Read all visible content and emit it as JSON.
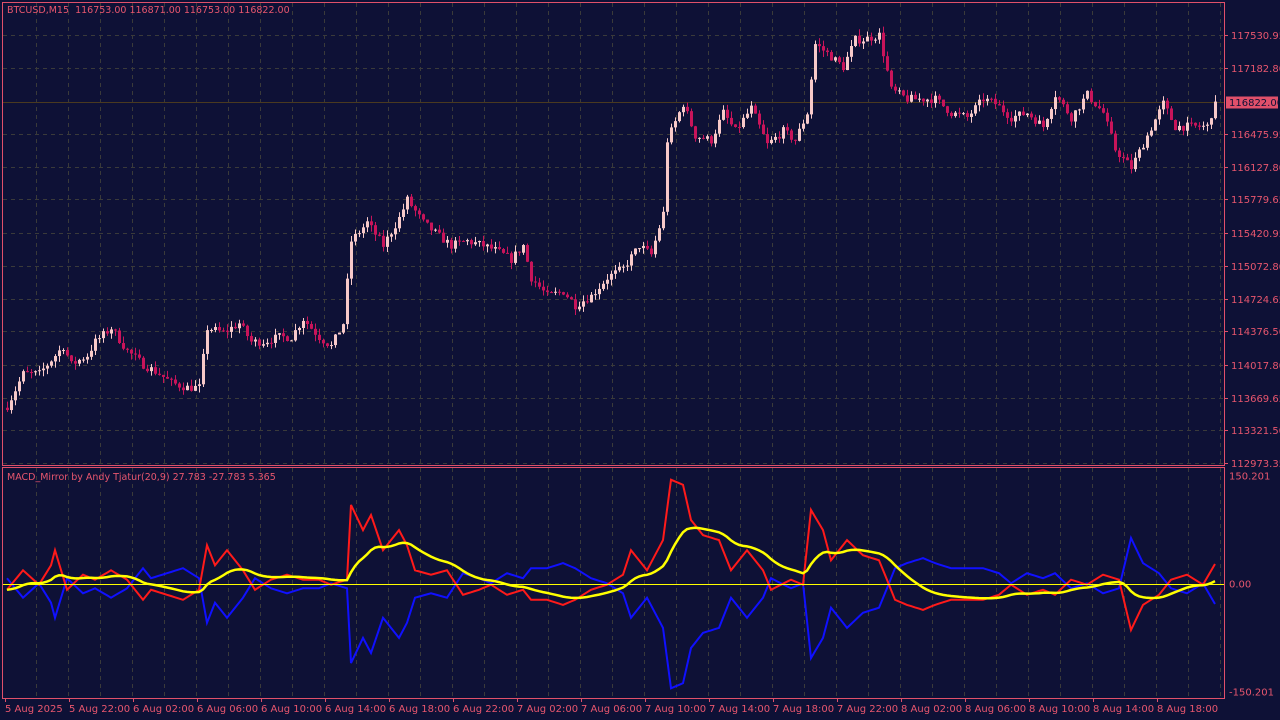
{
  "header": {
    "symbol": "BTCUSD,M15",
    "ohlc": "116753.00 116871.00 116753.00 116822.00"
  },
  "indicator": {
    "title": "MACD_Mirror by Andy Tjatur(20,9) 27.783 -27.783 5.365",
    "signal_period": 9
  },
  "colors": {
    "background": "#0e1136",
    "frame": "#e0506a",
    "text": "#e8566e",
    "bull_candle": "#f7c9c9",
    "bear_candle": "#c8145a",
    "macd_line": "#ff1a1a",
    "mirror_line": "#1010ff",
    "signal_line": "#ffff00",
    "grid": "#3a3a3a",
    "current_price_line": "#4a3a20"
  },
  "chart_data": [
    {
      "type": "candlestick",
      "title": "BTCUSD,M15",
      "bar_count": 303,
      "price_ticks": [
        "117530.95",
        "117182.80",
        "116475.95",
        "116127.80",
        "115779.65",
        "115420.95",
        "115072.80",
        "114724.65",
        "114376.50",
        "114017.80",
        "113669.65",
        "113321.50",
        "112973.35"
      ],
      "ylim": [
        112973.35,
        117530.95
      ],
      "current_price": "116822.00",
      "close_keypoints": [
        [
          0,
          113582
        ],
        [
          4,
          113923
        ],
        [
          8,
          113923
        ],
        [
          11,
          114070
        ],
        [
          14,
          114216
        ],
        [
          16,
          114021
        ],
        [
          20,
          114119
        ],
        [
          22,
          114265
        ],
        [
          26,
          114411
        ],
        [
          30,
          114167
        ],
        [
          34,
          114021
        ],
        [
          38,
          113923
        ],
        [
          41,
          113826
        ],
        [
          45,
          113777
        ],
        [
          48,
          113777
        ],
        [
          50,
          114411
        ],
        [
          54,
          114362
        ],
        [
          58,
          114460
        ],
        [
          61,
          114265
        ],
        [
          64,
          114265
        ],
        [
          68,
          114314
        ],
        [
          71,
          114314
        ],
        [
          74,
          114509
        ],
        [
          78,
          114314
        ],
        [
          81,
          114216
        ],
        [
          84,
          114460
        ],
        [
          86,
          115337
        ],
        [
          90,
          115532
        ],
        [
          94,
          115289
        ],
        [
          98,
          115581
        ],
        [
          100,
          115776
        ],
        [
          104,
          115532
        ],
        [
          108,
          115386
        ],
        [
          111,
          115289
        ],
        [
          115,
          115337
        ],
        [
          119,
          115289
        ],
        [
          122,
          115240
        ],
        [
          126,
          115142
        ],
        [
          129,
          115289
        ],
        [
          131,
          114947
        ],
        [
          135,
          114752
        ],
        [
          139,
          114801
        ],
        [
          142,
          114655
        ],
        [
          146,
          114752
        ],
        [
          150,
          114947
        ],
        [
          154,
          115045
        ],
        [
          158,
          115289
        ],
        [
          161,
          115191
        ],
        [
          164,
          115630
        ],
        [
          165,
          116410
        ],
        [
          169,
          116800
        ],
        [
          172,
          116459
        ],
        [
          176,
          116410
        ],
        [
          179,
          116702
        ],
        [
          182,
          116507
        ],
        [
          186,
          116751
        ],
        [
          190,
          116361
        ],
        [
          194,
          116507
        ],
        [
          197,
          116410
        ],
        [
          200,
          116702
        ],
        [
          202,
          117434
        ],
        [
          205,
          117336
        ],
        [
          209,
          117190
        ],
        [
          212,
          117482
        ],
        [
          214,
          117482
        ],
        [
          218,
          117531
        ],
        [
          221,
          116946
        ],
        [
          225,
          116849
        ],
        [
          229,
          116849
        ],
        [
          232,
          116849
        ],
        [
          236,
          116702
        ],
        [
          240,
          116654
        ],
        [
          244,
          116849
        ],
        [
          247,
          116800
        ],
        [
          251,
          116654
        ],
        [
          255,
          116702
        ],
        [
          259,
          116556
        ],
        [
          262,
          116897
        ],
        [
          266,
          116654
        ],
        [
          270,
          116897
        ],
        [
          274,
          116702
        ],
        [
          277,
          116312
        ],
        [
          281,
          116117
        ],
        [
          285,
          116459
        ],
        [
          289,
          116800
        ],
        [
          292,
          116556
        ],
        [
          296,
          116556
        ],
        [
          300,
          116556
        ],
        [
          302,
          116822
        ]
      ],
      "time_labels": [
        "5 Aug 2025",
        "5 Aug 22:00",
        "6 Aug 02:00",
        "6 Aug 06:00",
        "6 Aug 10:00",
        "6 Aug 14:00",
        "6 Aug 18:00",
        "6 Aug 22:00",
        "7 Aug 02:00",
        "7 Aug 06:00",
        "7 Aug 10:00",
        "7 Aug 14:00",
        "7 Aug 18:00",
        "7 Aug 22:00",
        "8 Aug 02:00",
        "8 Aug 06:00",
        "8 Aug 10:00",
        "8 Aug 14:00",
        "8 Aug 18:00"
      ],
      "time_label_every_bars": 16,
      "grid": true
    },
    {
      "type": "line",
      "title": "MACD_Mirror by Andy Tjatur(20,9)",
      "ylim": [
        -150.201,
        150.201
      ],
      "y_ticks": [
        "150.201",
        "0.00",
        "-150.201"
      ],
      "macd_keypoints": [
        [
          0,
          -8
        ],
        [
          4,
          19
        ],
        [
          8,
          -1
        ],
        [
          11,
          26
        ],
        [
          12,
          47
        ],
        [
          15,
          -8
        ],
        [
          19,
          13
        ],
        [
          22,
          6
        ],
        [
          26,
          19
        ],
        [
          30,
          6
        ],
        [
          34,
          -22
        ],
        [
          36,
          -8
        ],
        [
          40,
          -15
        ],
        [
          44,
          -22
        ],
        [
          48,
          -8
        ],
        [
          50,
          54
        ],
        [
          52,
          26
        ],
        [
          55,
          47
        ],
        [
          59,
          19
        ],
        [
          62,
          -8
        ],
        [
          66,
          6
        ],
        [
          70,
          13
        ],
        [
          74,
          6
        ],
        [
          78,
          6
        ],
        [
          81,
          -1
        ],
        [
          85,
          6
        ],
        [
          86,
          110
        ],
        [
          89,
          75
        ],
        [
          91,
          96
        ],
        [
          94,
          47
        ],
        [
          98,
          75
        ],
        [
          100,
          54
        ],
        [
          102,
          19
        ],
        [
          106,
          13
        ],
        [
          110,
          19
        ],
        [
          114,
          -15
        ],
        [
          118,
          -8
        ],
        [
          121,
          -1
        ],
        [
          125,
          -15
        ],
        [
          129,
          -8
        ],
        [
          131,
          -22
        ],
        [
          135,
          -22
        ],
        [
          139,
          -29
        ],
        [
          142,
          -22
        ],
        [
          146,
          -8
        ],
        [
          150,
          -1
        ],
        [
          154,
          13
        ],
        [
          156,
          47
        ],
        [
          160,
          19
        ],
        [
          164,
          61
        ],
        [
          166,
          145
        ],
        [
          169,
          138
        ],
        [
          171,
          89
        ],
        [
          174,
          68
        ],
        [
          178,
          61
        ],
        [
          181,
          19
        ],
        [
          185,
          47
        ],
        [
          189,
          19
        ],
        [
          191,
          -8
        ],
        [
          196,
          6
        ],
        [
          199,
          -1
        ],
        [
          201,
          103
        ],
        [
          204,
          75
        ],
        [
          206,
          33
        ],
        [
          210,
          61
        ],
        [
          214,
          40
        ],
        [
          218,
          33
        ],
        [
          220,
          6
        ],
        [
          222,
          -22
        ],
        [
          225,
          -29
        ],
        [
          229,
          -36
        ],
        [
          232,
          -29
        ],
        [
          236,
          -22
        ],
        [
          240,
          -22
        ],
        [
          244,
          -22
        ],
        [
          248,
          -15
        ],
        [
          251,
          -1
        ],
        [
          255,
          -15
        ],
        [
          259,
          -8
        ],
        [
          262,
          -15
        ],
        [
          266,
          6
        ],
        [
          270,
          -1
        ],
        [
          274,
          13
        ],
        [
          278,
          6
        ],
        [
          281,
          -64
        ],
        [
          284,
          -29
        ],
        [
          288,
          -15
        ],
        [
          291,
          6
        ],
        [
          295,
          13
        ],
        [
          299,
          -1
        ],
        [
          302,
          27.783
        ]
      ],
      "series": [
        {
          "name": "MACD",
          "color": "#ff1a1a"
        },
        {
          "name": "Mirror",
          "color": "#1010ff"
        },
        {
          "name": "Signal",
          "color": "#ffff00"
        }
      ]
    }
  ]
}
